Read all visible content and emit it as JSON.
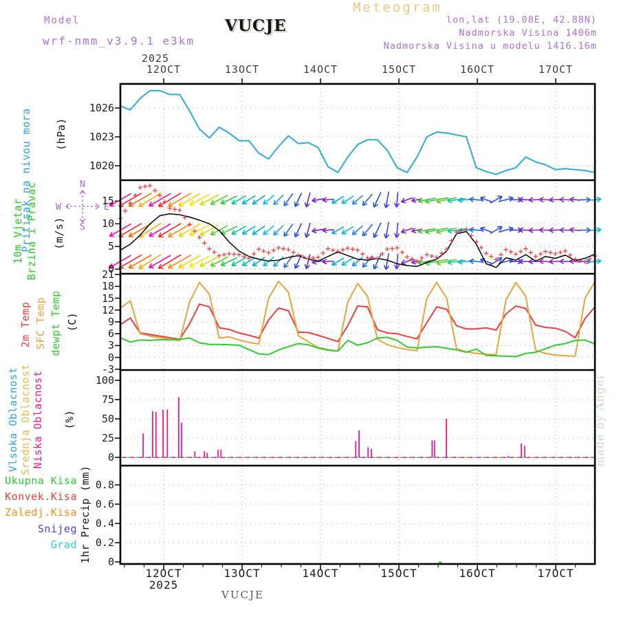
{
  "header": {
    "title": "Meteogram",
    "model_label": "Model",
    "model_name": "wrf-nmm_v3.9.1 e3km",
    "station": "VUCJE",
    "lonlat": "lon,lat (19.08E, 42.88N)",
    "elevation": "Nadmorska Visina 1406m",
    "model_elevation": "Nadmorska Visina u modelu 1416.16m"
  },
  "axis": {
    "year": "2025",
    "days": [
      "12OCT",
      "13OCT",
      "14OCT",
      "15OCT",
      "16OCT",
      "17OCT"
    ],
    "fracs": [
      0.0913,
      0.2565,
      0.4217,
      0.587,
      0.7522,
      0.9174
    ]
  },
  "footer": {
    "station": "VUCJE",
    "year": "2025"
  },
  "watermark": "made by Angel",
  "chart_data": [
    {
      "id": "pressure",
      "type": "line",
      "side_label": "Pritisak na nivou mora",
      "side_label_color": "#29a3e8",
      "unit": "(hPa)",
      "ylim": [
        1018.5,
        1028.5
      ],
      "yticks": [
        1026,
        1023,
        1020
      ],
      "line_color": "#29abe2",
      "values": [
        1026.2,
        1025.8,
        1027.0,
        1027.8,
        1027.8,
        1027.4,
        1027.4,
        1025.7,
        1023.8,
        1022.9,
        1024.0,
        1023.4,
        1022.6,
        1022.6,
        1021.3,
        1020.7,
        1022.0,
        1023.1,
        1022.3,
        1022.4,
        1021.9,
        1019.9,
        1019.3,
        1020.9,
        1022.2,
        1022.7,
        1022.7,
        1021.6,
        1019.8,
        1019.3,
        1020.9,
        1023.0,
        1023.5,
        1023.4,
        1023.2,
        1023.0,
        1019.8,
        1019.4,
        1019.1,
        1019.5,
        1019.8,
        1020.9,
        1020.4,
        1020.1,
        1019.6,
        1019.7,
        1019.6,
        1019.5,
        1019.3
      ]
    },
    {
      "id": "wind",
      "type": "wind-barbs",
      "side_labels": [
        "10m Vjetar",
        "Brzina i Pravac"
      ],
      "side_label_color": "#22cc22",
      "unit": "(m/s)",
      "ylim": [
        -1.0,
        19.6
      ],
      "yticks": [
        15,
        10,
        5,
        0
      ],
      "compass": {
        "n": "N",
        "e": "E",
        "s": "S",
        "w": "W",
        "color": "#a569e0"
      },
      "speed": {
        "name": "speed",
        "color": "#000000",
        "values": [
          4.2,
          5.5,
          7.5,
          10.0,
          11.8,
          12.2,
          12.0,
          11.5,
          10.8,
          10.0,
          8.5,
          6.0,
          4.0,
          2.8,
          2.2,
          1.8,
          2.0,
          2.6,
          3.0,
          2.2,
          1.8,
          2.8,
          3.8,
          3.0,
          2.2,
          2.0,
          2.4,
          2.0,
          1.2,
          0.8,
          0.6,
          1.5,
          2.2,
          4.0,
          7.8,
          8.3,
          5.5,
          1.2,
          0.4,
          2.5,
          2.0,
          3.2,
          1.8,
          2.8,
          2.4,
          3.1,
          1.9,
          2.4,
          3.3
        ]
      },
      "gust": {
        "name": "gust",
        "color": "#f04040",
        "values": [
          11.2,
          14.5,
          18.0,
          18.4,
          16.2,
          13.4,
          13.0,
          9.8,
          7.0,
          4.5,
          3.0,
          3.4,
          3.2,
          2.4,
          4.4,
          3.6,
          4.7,
          4.3,
          3.1,
          2.3,
          2.6,
          4.5,
          3.9,
          4.6,
          4.2,
          2.5,
          2.4,
          4.4,
          4.7,
          2.7,
          1.8,
          3.2,
          2.6,
          4.4,
          8.2,
          8.8,
          6.0,
          3.5,
          2.1,
          4.3,
          3.3,
          4.5,
          2.8,
          3.9,
          3.4,
          4.0,
          2.2,
          1.6,
          2.9
        ]
      },
      "arrow_rows": [
        15.3,
        8.6,
        1.7
      ],
      "arrows": [
        {
          "c": "#ff00aa",
          "a": 150,
          "l": 36
        },
        {
          "c": "#ff2222",
          "a": 150,
          "l": 38
        },
        {
          "c": "#ff6600",
          "a": 150,
          "l": 38
        },
        {
          "c": "#ffaa00",
          "a": 148,
          "l": 38
        },
        {
          "c": "#ff00aa",
          "a": 150,
          "l": 36
        },
        {
          "c": "#ff2222",
          "a": 149,
          "l": 38
        },
        {
          "c": "#ff8800",
          "a": 150,
          "l": 38
        },
        {
          "c": "#ffcc00",
          "a": 150,
          "l": 36
        },
        {
          "c": "#ffe000",
          "a": 152,
          "l": 32
        },
        {
          "c": "#ccdd00",
          "a": 152,
          "l": 30
        },
        {
          "c": "#55cc22",
          "a": 152,
          "l": 28
        },
        {
          "c": "#22cc44",
          "a": 154,
          "l": 26
        },
        {
          "c": "#00cc88",
          "a": 150,
          "l": 24
        },
        {
          "c": "#00bbcc",
          "a": 148,
          "l": 22
        },
        {
          "c": "#00aadd",
          "a": 145,
          "l": 22
        },
        {
          "c": "#11bbee",
          "a": 140,
          "l": 20
        },
        {
          "c": "#2299ee",
          "a": 135,
          "l": 20
        },
        {
          "c": "#2266ee",
          "a": 125,
          "l": 22
        },
        {
          "c": "#2244ee",
          "a": 115,
          "l": 22
        },
        {
          "c": "#4433dd",
          "a": 105,
          "l": 22
        },
        {
          "c": "#7722cc",
          "a": 170,
          "l": 18
        },
        {
          "c": "#8822cc",
          "a": 175,
          "l": 16
        },
        {
          "c": "#00aadd",
          "a": 150,
          "l": 20
        },
        {
          "c": "#00bbee",
          "a": 148,
          "l": 20
        },
        {
          "c": "#2288ee",
          "a": 140,
          "l": 20
        },
        {
          "c": "#2266ee",
          "a": 130,
          "l": 22
        },
        {
          "c": "#2250ee",
          "a": 115,
          "l": 24
        },
        {
          "c": "#3344ee",
          "a": 100,
          "l": 24
        },
        {
          "c": "#5533dd",
          "a": 95,
          "l": 22
        },
        {
          "c": "#7722cc",
          "a": 160,
          "l": 18
        },
        {
          "c": "#8822cc",
          "a": 168,
          "l": 16
        },
        {
          "c": "#44bb33",
          "a": 170,
          "l": 26
        },
        {
          "c": "#33cc33",
          "a": 170,
          "l": 34
        },
        {
          "c": "#66cc22",
          "a": 168,
          "l": 30
        },
        {
          "c": "#00ccaa",
          "a": 172,
          "l": 26
        },
        {
          "c": "#00bbdd",
          "a": 175,
          "l": 24
        },
        {
          "c": "#2266ee",
          "a": 185,
          "l": 20
        },
        {
          "c": "#3344ee",
          "a": 200,
          "l": 18
        },
        {
          "c": "#3344ff",
          "a": 330,
          "l": 20
        },
        {
          "c": "#2255ff",
          "a": 345,
          "l": 22
        },
        {
          "c": "#4433ee",
          "a": 0,
          "l": 18
        },
        {
          "c": "#7722cc",
          "a": 182,
          "l": 20
        },
        {
          "c": "#8822cc",
          "a": 178,
          "l": 20
        },
        {
          "c": "#9922cc",
          "a": 182,
          "l": 18
        },
        {
          "c": "#8822cc",
          "a": 178,
          "l": 18
        },
        {
          "c": "#7733cc",
          "a": 182,
          "l": 16
        },
        {
          "c": "#8822cc",
          "a": 185,
          "l": 16
        },
        {
          "c": "#3355ee",
          "a": 0,
          "l": 16
        },
        {
          "c": "#00bbdd",
          "a": 355,
          "l": 18
        }
      ]
    },
    {
      "id": "temp",
      "type": "line",
      "unit": "(C)",
      "ylim": [
        -3.2,
        21.2
      ],
      "yticks": [
        21,
        18,
        15,
        12,
        9,
        6,
        3,
        0,
        -3
      ],
      "series": [
        {
          "name": "2m Temp",
          "color": "#f03c3c",
          "values": [
            8.3,
            10.0,
            6.2,
            5.8,
            5.4,
            5.0,
            4.6,
            8.5,
            13.5,
            12.8,
            7.5,
            7.1,
            6.2,
            5.6,
            4.9,
            9.5,
            12.5,
            11.8,
            6.4,
            6.3,
            5.6,
            4.8,
            4.0,
            8.0,
            13.0,
            12.8,
            7.0,
            6.2,
            6.0,
            5.3,
            4.7,
            8.8,
            12.8,
            12.2,
            8.0,
            7.2,
            7.2,
            7.5,
            6.9,
            11.0,
            13.0,
            12.4,
            8.2,
            7.6,
            7.4,
            6.6,
            5.0,
            9.8,
            12.8
          ]
        },
        {
          "name": "SFC Temp",
          "color": "#e8a33d",
          "values": [
            12.5,
            14.3,
            6.0,
            5.4,
            5.0,
            4.6,
            4.2,
            14.0,
            19.0,
            16.0,
            4.9,
            5.2,
            4.4,
            3.8,
            3.4,
            15.0,
            19.3,
            16.5,
            5.5,
            4.0,
            2.5,
            2.0,
            1.6,
            14.0,
            18.7,
            15.5,
            4.6,
            3.2,
            2.5,
            2.0,
            1.7,
            15.0,
            19.0,
            15.0,
            2.2,
            1.4,
            1.0,
            0.8,
            0.7,
            14.5,
            19.0,
            15.5,
            1.8,
            1.0,
            0.6,
            0.4,
            0.3,
            15.0,
            19.2
          ]
        },
        {
          "name": "dewpt Temp",
          "color": "#2ecc2e",
          "values": [
            5.0,
            3.9,
            4.4,
            4.3,
            4.5,
            4.4,
            4.6,
            4.9,
            3.7,
            3.3,
            3.3,
            3.2,
            3.1,
            2.0,
            0.9,
            0.7,
            1.9,
            2.7,
            3.5,
            3.2,
            2.4,
            1.8,
            1.6,
            4.3,
            3.1,
            3.7,
            4.9,
            5.1,
            4.3,
            2.6,
            2.4,
            2.6,
            2.7,
            2.3,
            1.9,
            1.3,
            2.1,
            0.5,
            0.4,
            0.3,
            0.2,
            1.0,
            1.3,
            2.2,
            3.1,
            3.5,
            4.3,
            4.4,
            3.4
          ]
        }
      ]
    },
    {
      "id": "cloud",
      "type": "bar",
      "unit": "(%)",
      "ylim": [
        -10.7,
        113.4
      ],
      "yticks": [
        100,
        75,
        50,
        25,
        0
      ],
      "series_labels": [
        {
          "name": "Vlsoka Oblacnost",
          "color": "#29a3e8"
        },
        {
          "name": "Srednja Oblacnost",
          "color": "#e8b84b"
        },
        {
          "name": "Niska Oblacnost",
          "color": "#ea1a8c"
        }
      ],
      "bar_color": "#ea1a8c",
      "zero_line_colors": [
        "#29a3e8",
        "#e8b84b",
        "#ea1a8c"
      ],
      "bars": [
        {
          "f": 0.048,
          "v": 31
        },
        {
          "f": 0.068,
          "v": 60
        },
        {
          "f": 0.075,
          "v": 59
        },
        {
          "f": 0.09,
          "v": 62
        },
        {
          "f": 0.099,
          "v": 62
        },
        {
          "f": 0.123,
          "v": 78
        },
        {
          "f": 0.129,
          "v": 45
        },
        {
          "f": 0.157,
          "v": 8
        },
        {
          "f": 0.177,
          "v": 8
        },
        {
          "f": 0.183,
          "v": 6
        },
        {
          "f": 0.206,
          "v": 10
        },
        {
          "f": 0.212,
          "v": 10
        },
        {
          "f": 0.496,
          "v": 21
        },
        {
          "f": 0.503,
          "v": 35
        },
        {
          "f": 0.522,
          "v": 13
        },
        {
          "f": 0.529,
          "v": 11
        },
        {
          "f": 0.657,
          "v": 22
        },
        {
          "f": 0.662,
          "v": 22
        },
        {
          "f": 0.687,
          "v": 50
        },
        {
          "f": 0.817,
          "v": 2
        },
        {
          "f": 0.845,
          "v": 18
        },
        {
          "f": 0.852,
          "v": 15
        }
      ]
    },
    {
      "id": "precip",
      "type": "bar",
      "unit": "1hr Precip (mm)",
      "ylim": [
        -0.0214,
        1.0
      ],
      "yticks": [
        0.8,
        0.6,
        0.4,
        0.2,
        0
      ],
      "series_labels": [
        {
          "name": "Ukupna Kisa",
          "color": "#2ecc2e"
        },
        {
          "name": "Konvek.Kisa",
          "color": "#f03c3c"
        },
        {
          "name": "Zaledj.Kisa",
          "color": "#ff8c1a"
        },
        {
          "name": "Snijeg",
          "color": "#4444ee"
        },
        {
          "name": "Grad",
          "color": "#2ad4d4"
        }
      ],
      "blip": {
        "f": 0.674,
        "v": 0.02,
        "color": "#2ecc2e"
      }
    }
  ]
}
